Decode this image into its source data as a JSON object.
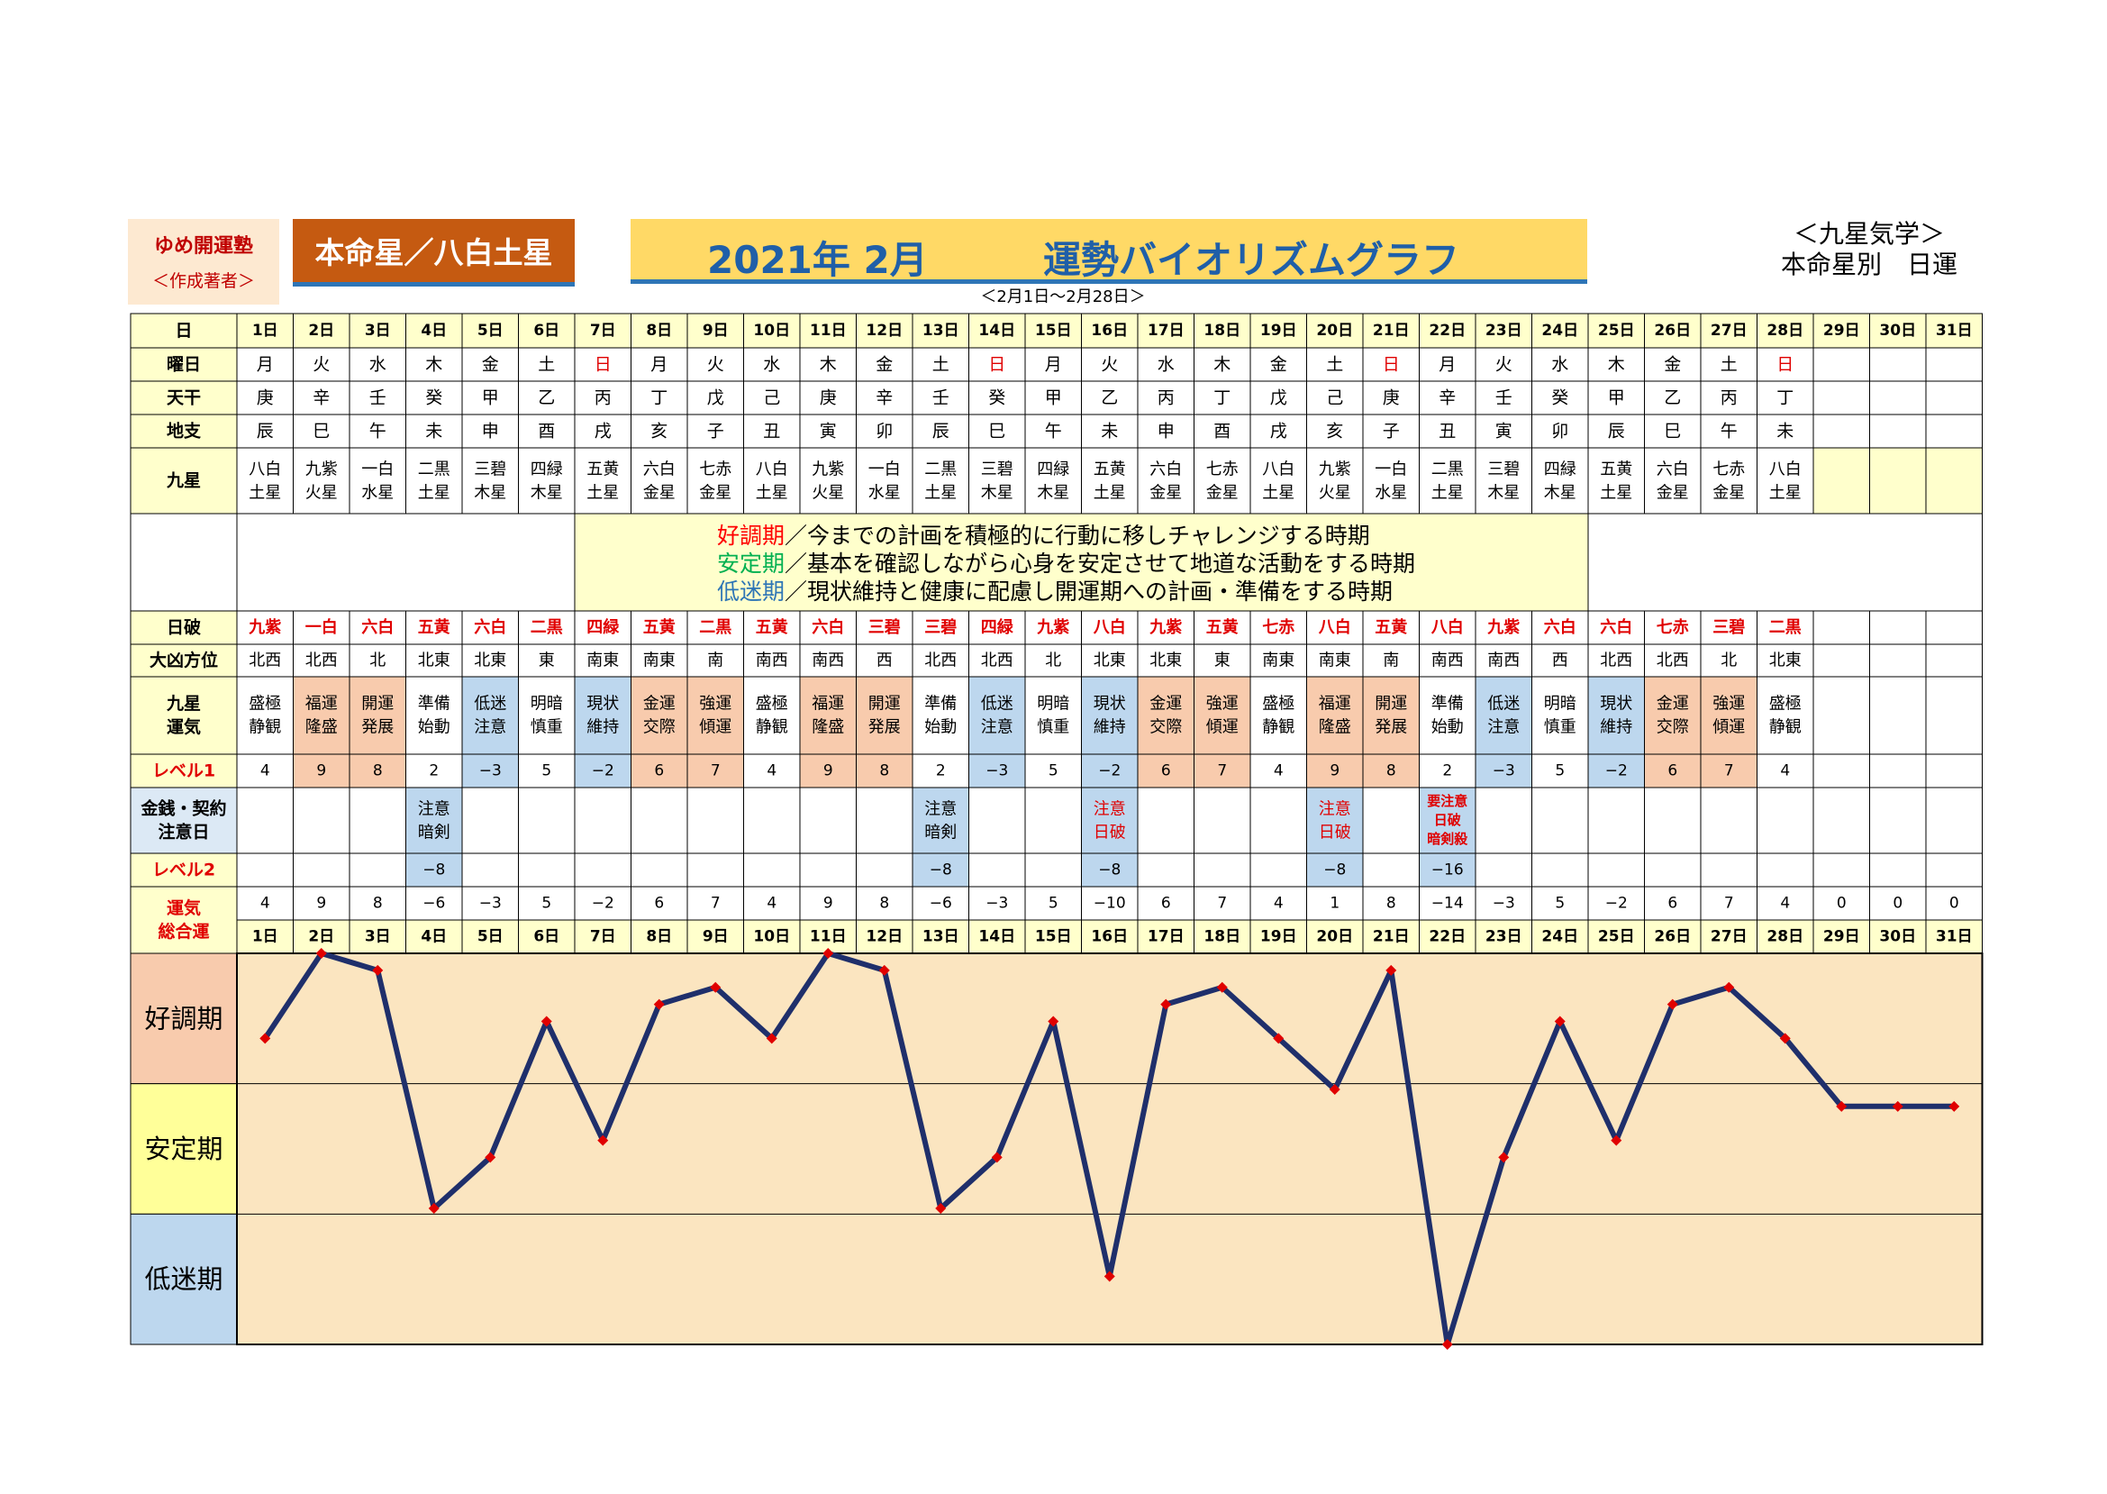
{
  "header": {
    "publisher_name": "ゆめ開運塾",
    "publisher_sub": "＜作成著者＞",
    "honmei": "本命星／八白土星",
    "title_year": "2021年 2月",
    "title_text": "運勢バイオリズムグラフ",
    "date_range": "＜2月1日～2月28日＞",
    "category_line1": "＜九星気学＞",
    "category_line2": "本命星別　日運"
  },
  "row_labels": {
    "day": "日",
    "weekday": "曜日",
    "tenkan": "天干",
    "chishi": "地支",
    "kyusei": "九星",
    "nippa": "日破",
    "daikyo": "大凶方位",
    "kyusei_unki_1": "九星",
    "kyusei_unki_2": "運気",
    "level1": "レベル1",
    "kinsen_1": "金銭・契約",
    "kinsen_2": "注意日",
    "level2": "レベル2",
    "sogo_1": "運気",
    "sogo_2": "総合運"
  },
  "days": [
    "1日",
    "2日",
    "3日",
    "4日",
    "5日",
    "6日",
    "7日",
    "8日",
    "9日",
    "10日",
    "11日",
    "12日",
    "13日",
    "14日",
    "15日",
    "16日",
    "17日",
    "18日",
    "19日",
    "20日",
    "21日",
    "22日",
    "23日",
    "24日",
    "25日",
    "26日",
    "27日",
    "28日",
    "29日",
    "30日",
    "31日"
  ],
  "weekdays": [
    "月",
    "火",
    "水",
    "木",
    "金",
    "土",
    "日",
    "月",
    "火",
    "水",
    "木",
    "金",
    "土",
    "日",
    "月",
    "火",
    "水",
    "木",
    "金",
    "土",
    "日",
    "月",
    "火",
    "水",
    "木",
    "金",
    "土",
    "日",
    "",
    "",
    ""
  ],
  "tenkan": [
    "庚",
    "辛",
    "壬",
    "癸",
    "甲",
    "乙",
    "丙",
    "丁",
    "戊",
    "己",
    "庚",
    "辛",
    "壬",
    "癸",
    "甲",
    "乙",
    "丙",
    "丁",
    "戊",
    "己",
    "庚",
    "辛",
    "壬",
    "癸",
    "甲",
    "乙",
    "丙",
    "丁",
    "",
    "",
    ""
  ],
  "chishi": [
    "辰",
    "巳",
    "午",
    "未",
    "申",
    "酉",
    "戌",
    "亥",
    "子",
    "丑",
    "寅",
    "卯",
    "辰",
    "巳",
    "午",
    "未",
    "申",
    "酉",
    "戌",
    "亥",
    "子",
    "丑",
    "寅",
    "卯",
    "辰",
    "巳",
    "午",
    "未",
    "",
    "",
    ""
  ],
  "kyusei": [
    [
      "八白",
      "土星"
    ],
    [
      "九紫",
      "火星"
    ],
    [
      "一白",
      "水星"
    ],
    [
      "二黒",
      "土星"
    ],
    [
      "三碧",
      "木星"
    ],
    [
      "四緑",
      "木星"
    ],
    [
      "五黄",
      "土星"
    ],
    [
      "六白",
      "金星"
    ],
    [
      "七赤",
      "金星"
    ],
    [
      "八白",
      "土星"
    ],
    [
      "九紫",
      "火星"
    ],
    [
      "一白",
      "水星"
    ],
    [
      "二黒",
      "土星"
    ],
    [
      "三碧",
      "木星"
    ],
    [
      "四緑",
      "木星"
    ],
    [
      "五黄",
      "土星"
    ],
    [
      "六白",
      "金星"
    ],
    [
      "七赤",
      "金星"
    ],
    [
      "八白",
      "土星"
    ],
    [
      "九紫",
      "火星"
    ],
    [
      "一白",
      "水星"
    ],
    [
      "二黒",
      "土星"
    ],
    [
      "三碧",
      "木星"
    ],
    [
      "四緑",
      "木星"
    ],
    [
      "五黄",
      "土星"
    ],
    [
      "六白",
      "金星"
    ],
    [
      "七赤",
      "金星"
    ],
    [
      "八白",
      "土星"
    ],
    [
      "",
      ""
    ],
    [
      "",
      ""
    ],
    [
      "",
      ""
    ]
  ],
  "legend": [
    {
      "term": "好調期",
      "desc": "／今までの計画を積極的に行動に移しチャレンジする時期",
      "color": "#ff0000"
    },
    {
      "term": "安定期",
      "desc": "／基本を確認しながら心身を安定させて地道な活動をする時期",
      "color": "#00b050"
    },
    {
      "term": "低迷期",
      "desc": "／現状維持と健康に配慮し開運期への計画・準備をする時期",
      "color": "#2e75b6"
    }
  ],
  "nippa": [
    "九紫",
    "一白",
    "六白",
    "五黄",
    "六白",
    "二黒",
    "四緑",
    "五黄",
    "二黒",
    "五黄",
    "六白",
    "三碧",
    "三碧",
    "四緑",
    "九紫",
    "八白",
    "九紫",
    "五黄",
    "七赤",
    "八白",
    "五黄",
    "八白",
    "九紫",
    "六白",
    "六白",
    "七赤",
    "三碧",
    "二黒",
    "",
    "",
    ""
  ],
  "daikyo": [
    "北西",
    "北西",
    "北",
    "北東",
    "北東",
    "東",
    "南東",
    "南東",
    "南",
    "南西",
    "南西",
    "西",
    "北西",
    "北西",
    "北",
    "北東",
    "北東",
    "東",
    "南東",
    "南東",
    "南",
    "南西",
    "南西",
    "西",
    "北西",
    "北西",
    "北",
    "北東",
    "",
    "",
    ""
  ],
  "unki": [
    [
      "盛極",
      "静観"
    ],
    [
      "福運",
      "隆盛"
    ],
    [
      "開運",
      "発展"
    ],
    [
      "準備",
      "始動"
    ],
    [
      "低迷",
      "注意"
    ],
    [
      "明暗",
      "慎重"
    ],
    [
      "現状",
      "維持"
    ],
    [
      "金運",
      "交際"
    ],
    [
      "強運",
      "傾運"
    ],
    [
      "盛極",
      "静観"
    ],
    [
      "福運",
      "隆盛"
    ],
    [
      "開運",
      "発展"
    ],
    [
      "準備",
      "始動"
    ],
    [
      "低迷",
      "注意"
    ],
    [
      "明暗",
      "慎重"
    ],
    [
      "現状",
      "維持"
    ],
    [
      "金運",
      "交際"
    ],
    [
      "強運",
      "傾運"
    ],
    [
      "盛極",
      "静観"
    ],
    [
      "福運",
      "隆盛"
    ],
    [
      "開運",
      "発展"
    ],
    [
      "準備",
      "始動"
    ],
    [
      "低迷",
      "注意"
    ],
    [
      "明暗",
      "慎重"
    ],
    [
      "現状",
      "維持"
    ],
    [
      "金運",
      "交際"
    ],
    [
      "強運",
      "傾運"
    ],
    [
      "盛極",
      "静観"
    ],
    [
      "",
      ""
    ],
    [
      "",
      ""
    ],
    [
      "",
      ""
    ]
  ],
  "level1": [
    "4",
    "9",
    "8",
    "2",
    "−3",
    "5",
    "−2",
    "6",
    "7",
    "4",
    "9",
    "8",
    "2",
    "−3",
    "5",
    "−2",
    "6",
    "7",
    "4",
    "9",
    "8",
    "2",
    "−3",
    "5",
    "−2",
    "6",
    "7",
    "4",
    "",
    "",
    ""
  ],
  "kinsen": [
    [],
    [],
    [],
    [
      "注意",
      "暗剣"
    ],
    [],
    [],
    [],
    [],
    [],
    [],
    [],
    [],
    [
      "注意",
      "暗剣"
    ],
    [],
    [],
    [
      "注意",
      "日破"
    ],
    [],
    [],
    [],
    [
      "注意",
      "日破"
    ],
    [],
    [
      "要注意",
      "日破",
      "暗剣殺"
    ],
    [],
    [],
    [],
    [],
    [],
    [],
    [],
    [],
    []
  ],
  "level2": [
    "",
    "",
    "",
    "−8",
    "",
    "",
    "",
    "",
    "",
    "",
    "",
    "",
    "−8",
    "",
    "",
    "−8",
    "",
    "",
    "",
    "−8",
    "",
    "−16",
    "",
    "",
    "",
    "",
    "",
    "",
    "",
    "",
    ""
  ],
  "sogo": [
    "4",
    "9",
    "8",
    "−6",
    "−3",
    "5",
    "−2",
    "6",
    "7",
    "4",
    "9",
    "8",
    "−6",
    "−3",
    "5",
    "−10",
    "6",
    "7",
    "4",
    "1",
    "8",
    "−14",
    "−3",
    "5",
    "−2",
    "6",
    "7",
    "4",
    "0",
    "0",
    "0"
  ],
  "colors": {
    "header_yellow": "#ffffcc",
    "good_fill": "#f8cbad",
    "mid_fill": "#ffff99",
    "low_fill": "#bdd7ee",
    "chart_bg": "#fbe5c0",
    "line": "#1f2f6b",
    "marker": "#e00000",
    "red_text": "#e00000"
  },
  "chart_data": {
    "type": "line",
    "categories": [
      "1日",
      "2日",
      "3日",
      "4日",
      "5日",
      "6日",
      "7日",
      "8日",
      "9日",
      "10日",
      "11日",
      "12日",
      "13日",
      "14日",
      "15日",
      "16日",
      "17日",
      "18日",
      "19日",
      "20日",
      "21日",
      "22日",
      "23日",
      "24日",
      "25日",
      "26日",
      "27日",
      "28日",
      "29日",
      "30日",
      "31日"
    ],
    "series": [
      {
        "values": [
          4,
          9,
          8,
          -6,
          -3,
          5,
          -2,
          6,
          7,
          4,
          9,
          8,
          -6,
          -3,
          5,
          -10,
          6,
          7,
          4,
          1,
          8,
          -14,
          -3,
          5,
          -2,
          6,
          7,
          4,
          0,
          0,
          0
        ]
      }
    ],
    "bands": [
      "好調期",
      "安定期",
      "低迷期"
    ],
    "ylim": [
      -14,
      9
    ],
    "grid": false
  }
}
